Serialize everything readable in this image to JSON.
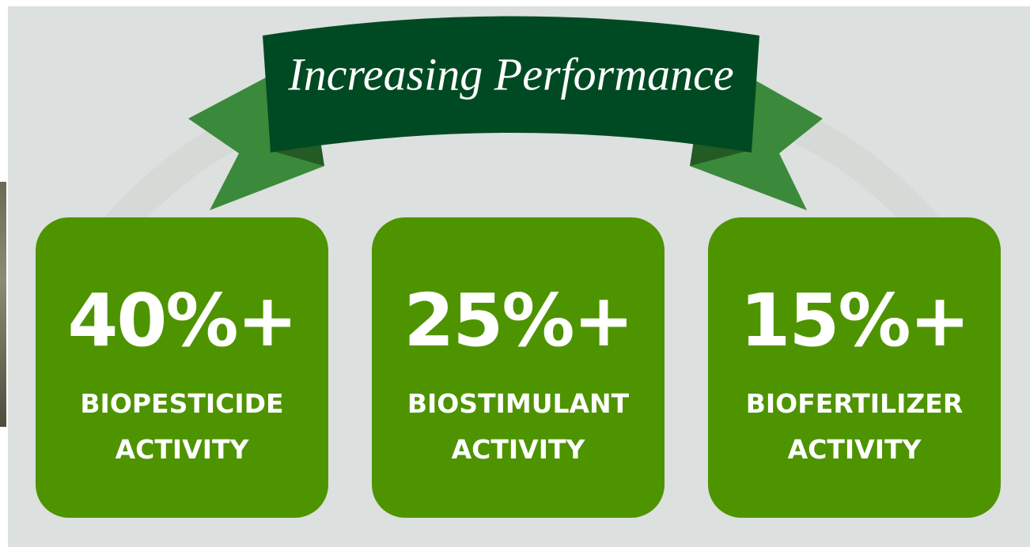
{
  "header": {
    "title": "Increasing Performance"
  },
  "cards": [
    {
      "value": "40%+",
      "label_lines": [
        "BIOPESTICIDE",
        "ACTIVITY"
      ]
    },
    {
      "value": "25%+",
      "label_lines": [
        "BIOSTIMULANT",
        "ACTIVITY"
      ]
    },
    {
      "value": "15%+",
      "label_lines": [
        "BIOFERTILIZER",
        "ACTIVITY"
      ]
    }
  ]
}
